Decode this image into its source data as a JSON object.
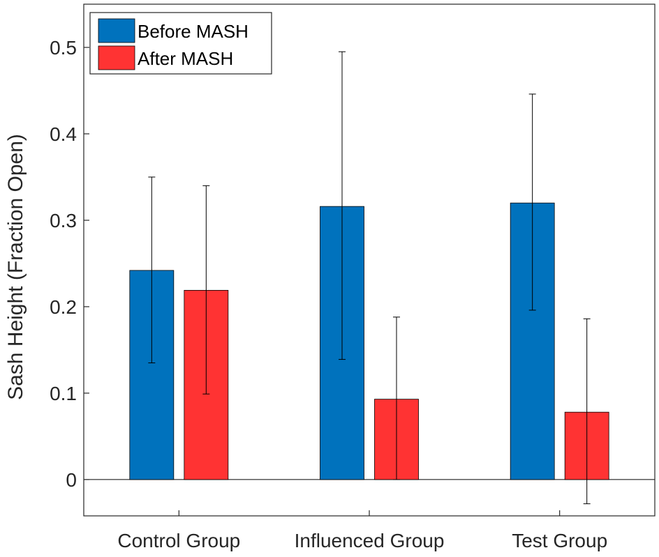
{
  "chart_data": {
    "type": "bar",
    "title": "",
    "xlabel": "",
    "ylabel": "Sash Height (Fraction Open)",
    "ylim": [
      -0.042,
      0.55
    ],
    "yticks": [
      0,
      0.1,
      0.2,
      0.3,
      0.4,
      0.5
    ],
    "ytick_labels": [
      "0",
      "0.1",
      "0.2",
      "0.3",
      "0.4",
      "0.5"
    ],
    "categories": [
      "Control Group",
      "Influenced Group",
      "Test Group"
    ],
    "series": [
      {
        "name": "Before MASH",
        "color": "#0072BD",
        "values": [
          0.242,
          0.316,
          0.32
        ],
        "err_low": [
          0.135,
          0.139,
          0.196
        ],
        "err_high": [
          0.35,
          0.495,
          0.446
        ]
      },
      {
        "name": "After MASH",
        "color": "#FF3333",
        "values": [
          0.219,
          0.093,
          0.078
        ],
        "err_low": [
          0.099,
          0.0,
          -0.028
        ],
        "err_high": [
          0.34,
          0.188,
          0.186
        ]
      }
    ],
    "legend": {
      "position": "top-left"
    },
    "grid": false
  }
}
